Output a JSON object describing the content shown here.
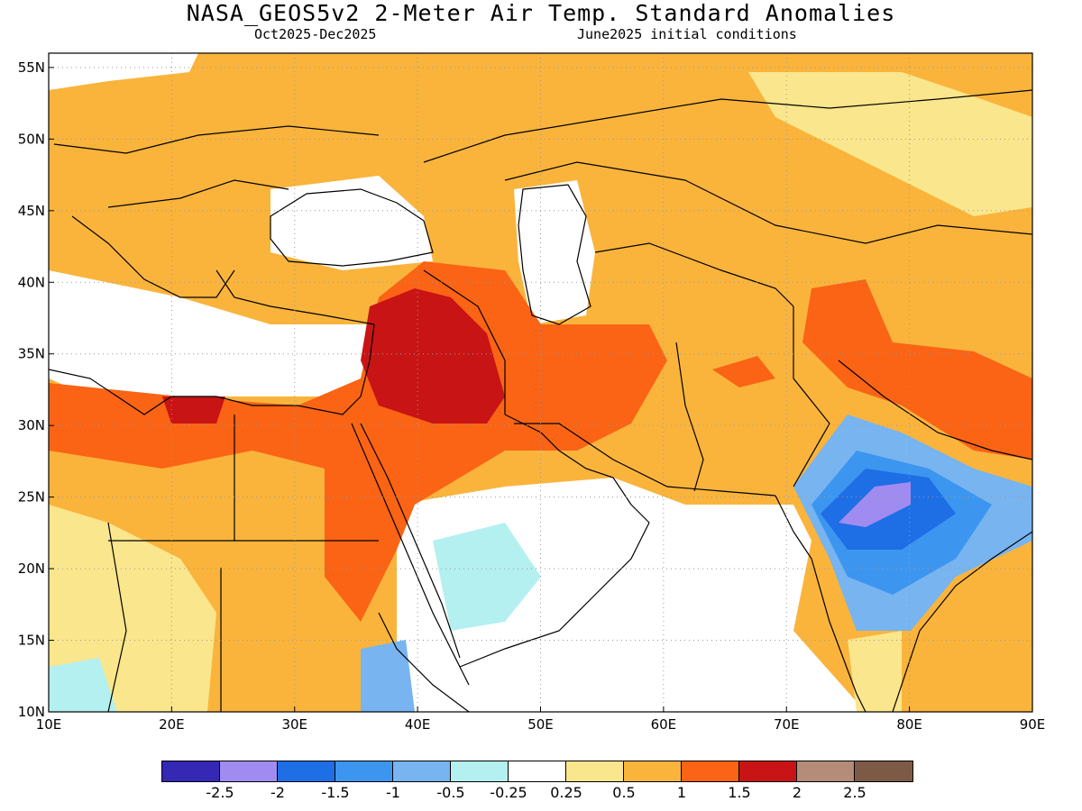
{
  "header": {
    "title": "NASA_GEOS5v2 2-Meter Air Temp. Standard Anomalies",
    "period": "Oct2025-Dec2025",
    "init": "June2025 initial conditions"
  },
  "map": {
    "lon_range": [
      10,
      90
    ],
    "lat_range": [
      10,
      56
    ],
    "lon_ticks": [
      "10E",
      "20E",
      "30E",
      "40E",
      "50E",
      "60E",
      "70E",
      "80E",
      "90E"
    ],
    "lat_ticks": [
      "10N",
      "15N",
      "20N",
      "25N",
      "30N",
      "35N",
      "40N",
      "45N",
      "50N",
      "55N"
    ],
    "grid": true
  },
  "colorbar": {
    "colors": [
      "#3428b4",
      "#a08cf0",
      "#1e6ee6",
      "#3c96f0",
      "#78b4f0",
      "#b4f0f0",
      "#ffffff",
      "#fae68c",
      "#fab43c",
      "#fa6414",
      "#c81414",
      "#b48c78",
      "#7d5a46"
    ],
    "labels": [
      "-2.5",
      "-2",
      "-1.5",
      "-1",
      "-0.5",
      "-0.25",
      "0.25",
      "0.5",
      "1",
      "1.5",
      "2",
      "2.5"
    ]
  },
  "colors": {
    "weak_warm": "#fae68c",
    "warm": "#fab43c",
    "strong_warm": "#fa6414",
    "very_warm": "#c81414",
    "cool": "#78b4f0",
    "strong_cool": "#1e6ee6",
    "coast": "#000000"
  }
}
